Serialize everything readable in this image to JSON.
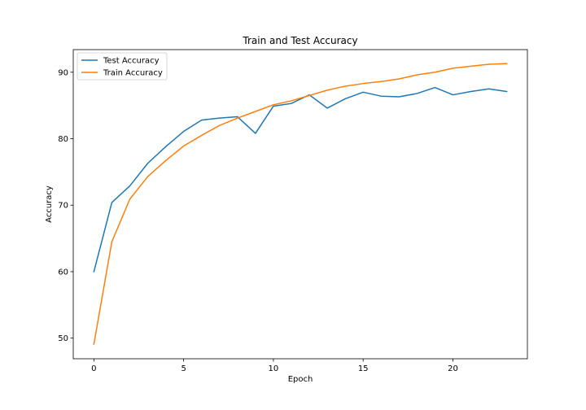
{
  "chart_data": {
    "type": "line",
    "title": "Train and Test Accuracy",
    "xlabel": "Epoch",
    "ylabel": "Accuracy",
    "xlim": [
      -1.15,
      24.15
    ],
    "ylim": [
      46.9,
      93.4
    ],
    "xticks": [
      0,
      5,
      10,
      15,
      20
    ],
    "yticks": [
      50,
      60,
      70,
      80,
      90
    ],
    "grid": false,
    "legend_position": "top-left",
    "x": [
      0,
      1,
      2,
      3,
      4,
      5,
      6,
      7,
      8,
      9,
      10,
      11,
      12,
      13,
      14,
      15,
      16,
      17,
      18,
      19,
      20,
      21,
      22,
      23
    ],
    "series": [
      {
        "name": "Test Accuracy",
        "color": "#1f77b4",
        "values": [
          60.0,
          70.4,
          72.9,
          76.3,
          78.8,
          81.1,
          82.8,
          83.1,
          83.3,
          80.8,
          84.9,
          85.3,
          86.6,
          84.6,
          86.0,
          87.0,
          86.4,
          86.3,
          86.8,
          87.7,
          86.6,
          87.1,
          87.5,
          87.1
        ]
      },
      {
        "name": "Train Accuracy",
        "color": "#ff7f0e",
        "values": [
          49.1,
          64.5,
          70.9,
          74.3,
          76.7,
          78.9,
          80.5,
          82.0,
          83.1,
          84.1,
          85.1,
          85.7,
          86.5,
          87.3,
          87.9,
          88.3,
          88.6,
          89.0,
          89.6,
          90.0,
          90.6,
          90.9,
          91.2,
          91.3
        ]
      }
    ]
  }
}
